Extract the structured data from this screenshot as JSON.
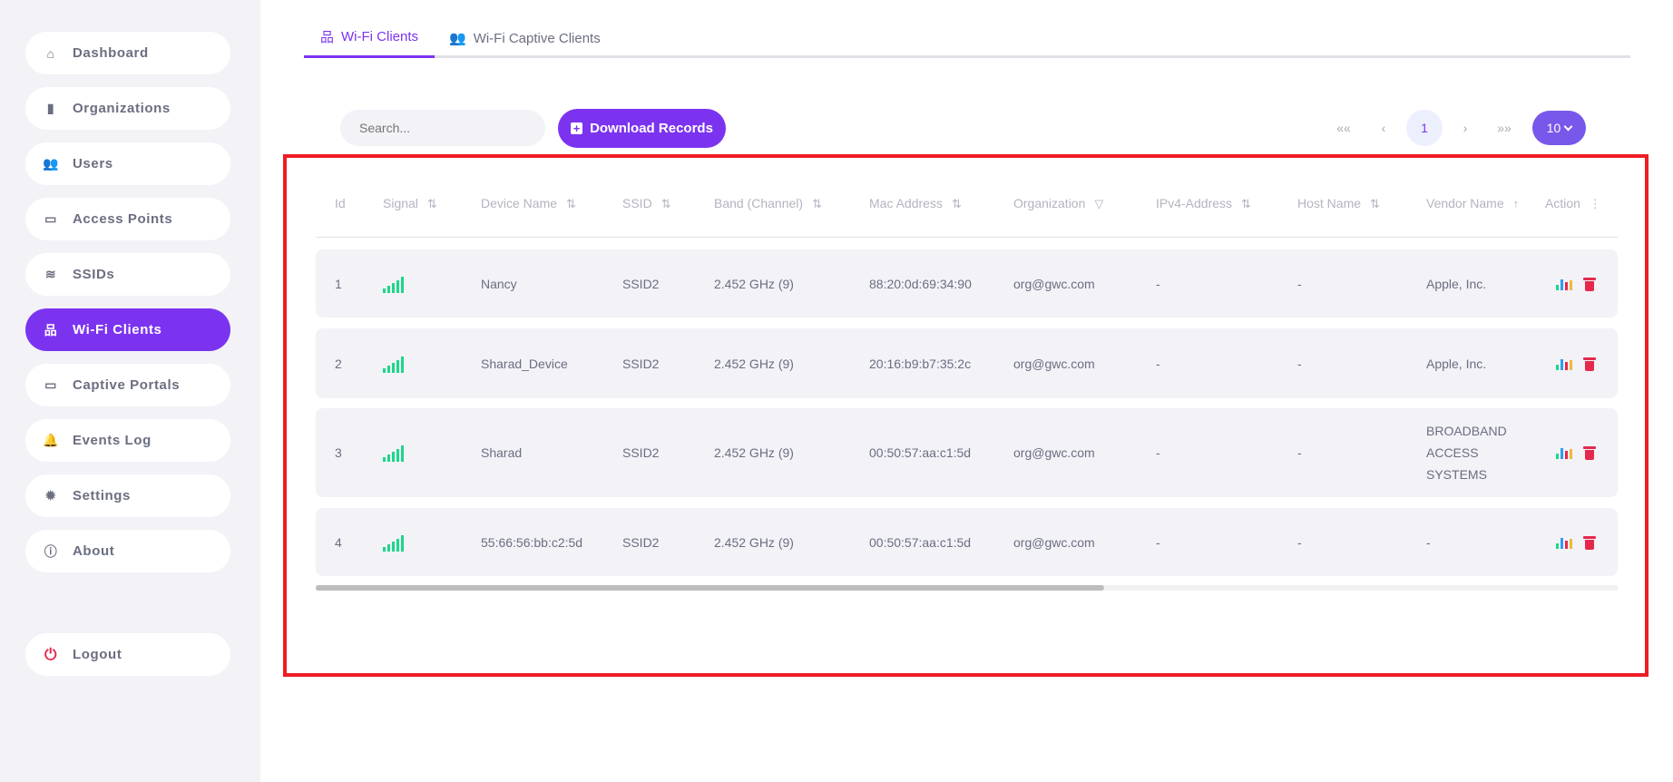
{
  "sidebar": {
    "items": [
      {
        "label": "Dashboard",
        "icon": "home-icon"
      },
      {
        "label": "Organizations",
        "icon": "building-icon"
      },
      {
        "label": "Users",
        "icon": "users-icon"
      },
      {
        "label": "Access Points",
        "icon": "devices-icon"
      },
      {
        "label": "SSIDs",
        "icon": "wifi-icon"
      },
      {
        "label": "Wi-Fi Clients",
        "icon": "network-icon",
        "active": true
      },
      {
        "label": "Captive Portals",
        "icon": "monitor-icon"
      },
      {
        "label": "Events Log",
        "icon": "bell-icon"
      },
      {
        "label": "Settings",
        "icon": "gear-icon"
      },
      {
        "label": "About",
        "icon": "info-icon"
      }
    ],
    "logout": "Logout"
  },
  "tabs": [
    {
      "label": "Wi-Fi Clients",
      "active": true
    },
    {
      "label": "Wi-Fi Captive Clients"
    }
  ],
  "toolbar": {
    "search_placeholder": "Search...",
    "download_label": "Download Records"
  },
  "pagination": {
    "first": "«",
    "prev": "‹",
    "page": "1",
    "next": "›",
    "last": "»",
    "page_size": "10"
  },
  "table": {
    "columns": [
      "Id",
      "Signal",
      "Device Name",
      "SSID",
      "Band (Channel)",
      "Mac Address",
      "Organization",
      "IPv4-Address",
      "Host Name",
      "Vendor Name",
      "Action"
    ],
    "rows": [
      {
        "id": "1",
        "device": "Nancy",
        "ssid": "SSID2",
        "band": "2.452 GHz (9)",
        "mac": "88:20:0d:69:34:90",
        "org": "org@gwc.com",
        "ipv4": "-",
        "host": "-",
        "vendor": "Apple, Inc."
      },
      {
        "id": "2",
        "device": "Sharad_Device",
        "ssid": "SSID2",
        "band": "2.452 GHz (9)",
        "mac": "20:16:b9:b7:35:2c",
        "org": "org@gwc.com",
        "ipv4": "-",
        "host": "-",
        "vendor": "Apple, Inc."
      },
      {
        "id": "3",
        "device": "Sharad",
        "ssid": "SSID2",
        "band": "2.452 GHz (9)",
        "mac": "00:50:57:aa:c1:5d",
        "org": "org@gwc.com",
        "ipv4": "-",
        "host": "-",
        "vendor": "BROADBAND ACCESS SYSTEMS"
      },
      {
        "id": "4",
        "device": "55:66:56:bb:c2:5d",
        "ssid": "SSID2",
        "band": "2.452 GHz (9)",
        "mac": "00:50:57:aa:c1:5d",
        "org": "org@gwc.com",
        "ipv4": "-",
        "host": "-",
        "vendor": "-"
      }
    ]
  },
  "colors": {
    "accent": "#7c33f0",
    "page_size_bg": "#7858ea",
    "signal": "#1ed68a",
    "delete": "#e5294c",
    "highlight_border": "#ee1c25"
  }
}
